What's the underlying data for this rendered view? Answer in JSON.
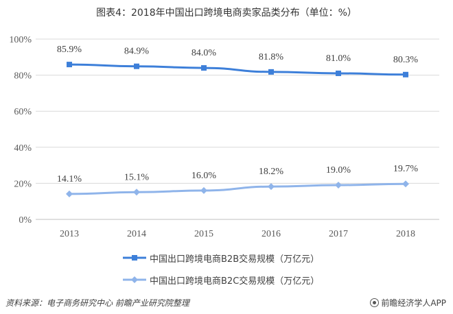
{
  "title": "图表4：2018年中国出口跨境电商卖家品类分布（单位：%）",
  "chart_data": {
    "type": "line",
    "title": "图表4：2018年中国出口跨境电商卖家品类分布（单位：%）",
    "categories": [
      "2013",
      "2014",
      "2015",
      "2016",
      "2017",
      "2018"
    ],
    "y_ticks": [
      "0%",
      "20%",
      "40%",
      "60%",
      "80%",
      "100%"
    ],
    "ylim": [
      0,
      100
    ],
    "grid": true,
    "legend_position": "bottom",
    "series": [
      {
        "name": "中国出口跨境电商B2B交易规模（万亿元）",
        "values": [
          85.9,
          84.9,
          84.0,
          81.8,
          81.0,
          80.3
        ],
        "labels": [
          "85.9%",
          "84.9%",
          "84.0%",
          "81.8%",
          "81.0%",
          "80.3%"
        ],
        "color": "#3d7fd9"
      },
      {
        "name": "中国出口跨境电商B2C交易规模（万亿元）",
        "values": [
          14.1,
          15.1,
          16.0,
          18.2,
          19.0,
          19.7
        ],
        "labels": [
          "14.1%",
          "15.1%",
          "16.0%",
          "18.2%",
          "19.0%",
          "19.7%"
        ],
        "color": "#8fb4ea"
      }
    ]
  },
  "footer": {
    "source": "资料来源：电子商务研究中心 前瞻产业研究院整理",
    "brand": "前瞻经济学人APP"
  },
  "colors": {
    "grid": "#d9d9d9",
    "axis": "#bfbfbf"
  }
}
